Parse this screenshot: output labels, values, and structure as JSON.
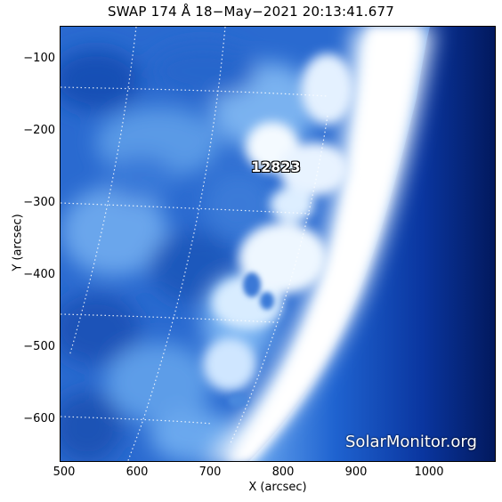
{
  "title": "SWAP 174 Å 18−May−2021 20:13:41.677",
  "axes": {
    "x_label": "X (arcsec)",
    "y_label": "Y (arcsec)",
    "x_ticks": [
      "500",
      "600",
      "700",
      "800",
      "900",
      "1000"
    ],
    "y_ticks": [
      "−100",
      "−200",
      "−300",
      "−400",
      "−500",
      "−600"
    ]
  },
  "region_label": "12823",
  "watermark": "SolarMonitor.org",
  "colors": {
    "disk_deep": "#1c55b8",
    "disk_bright": "#8fc0f2",
    "limb": "#ffffff",
    "space_dark": "#02185c"
  }
}
